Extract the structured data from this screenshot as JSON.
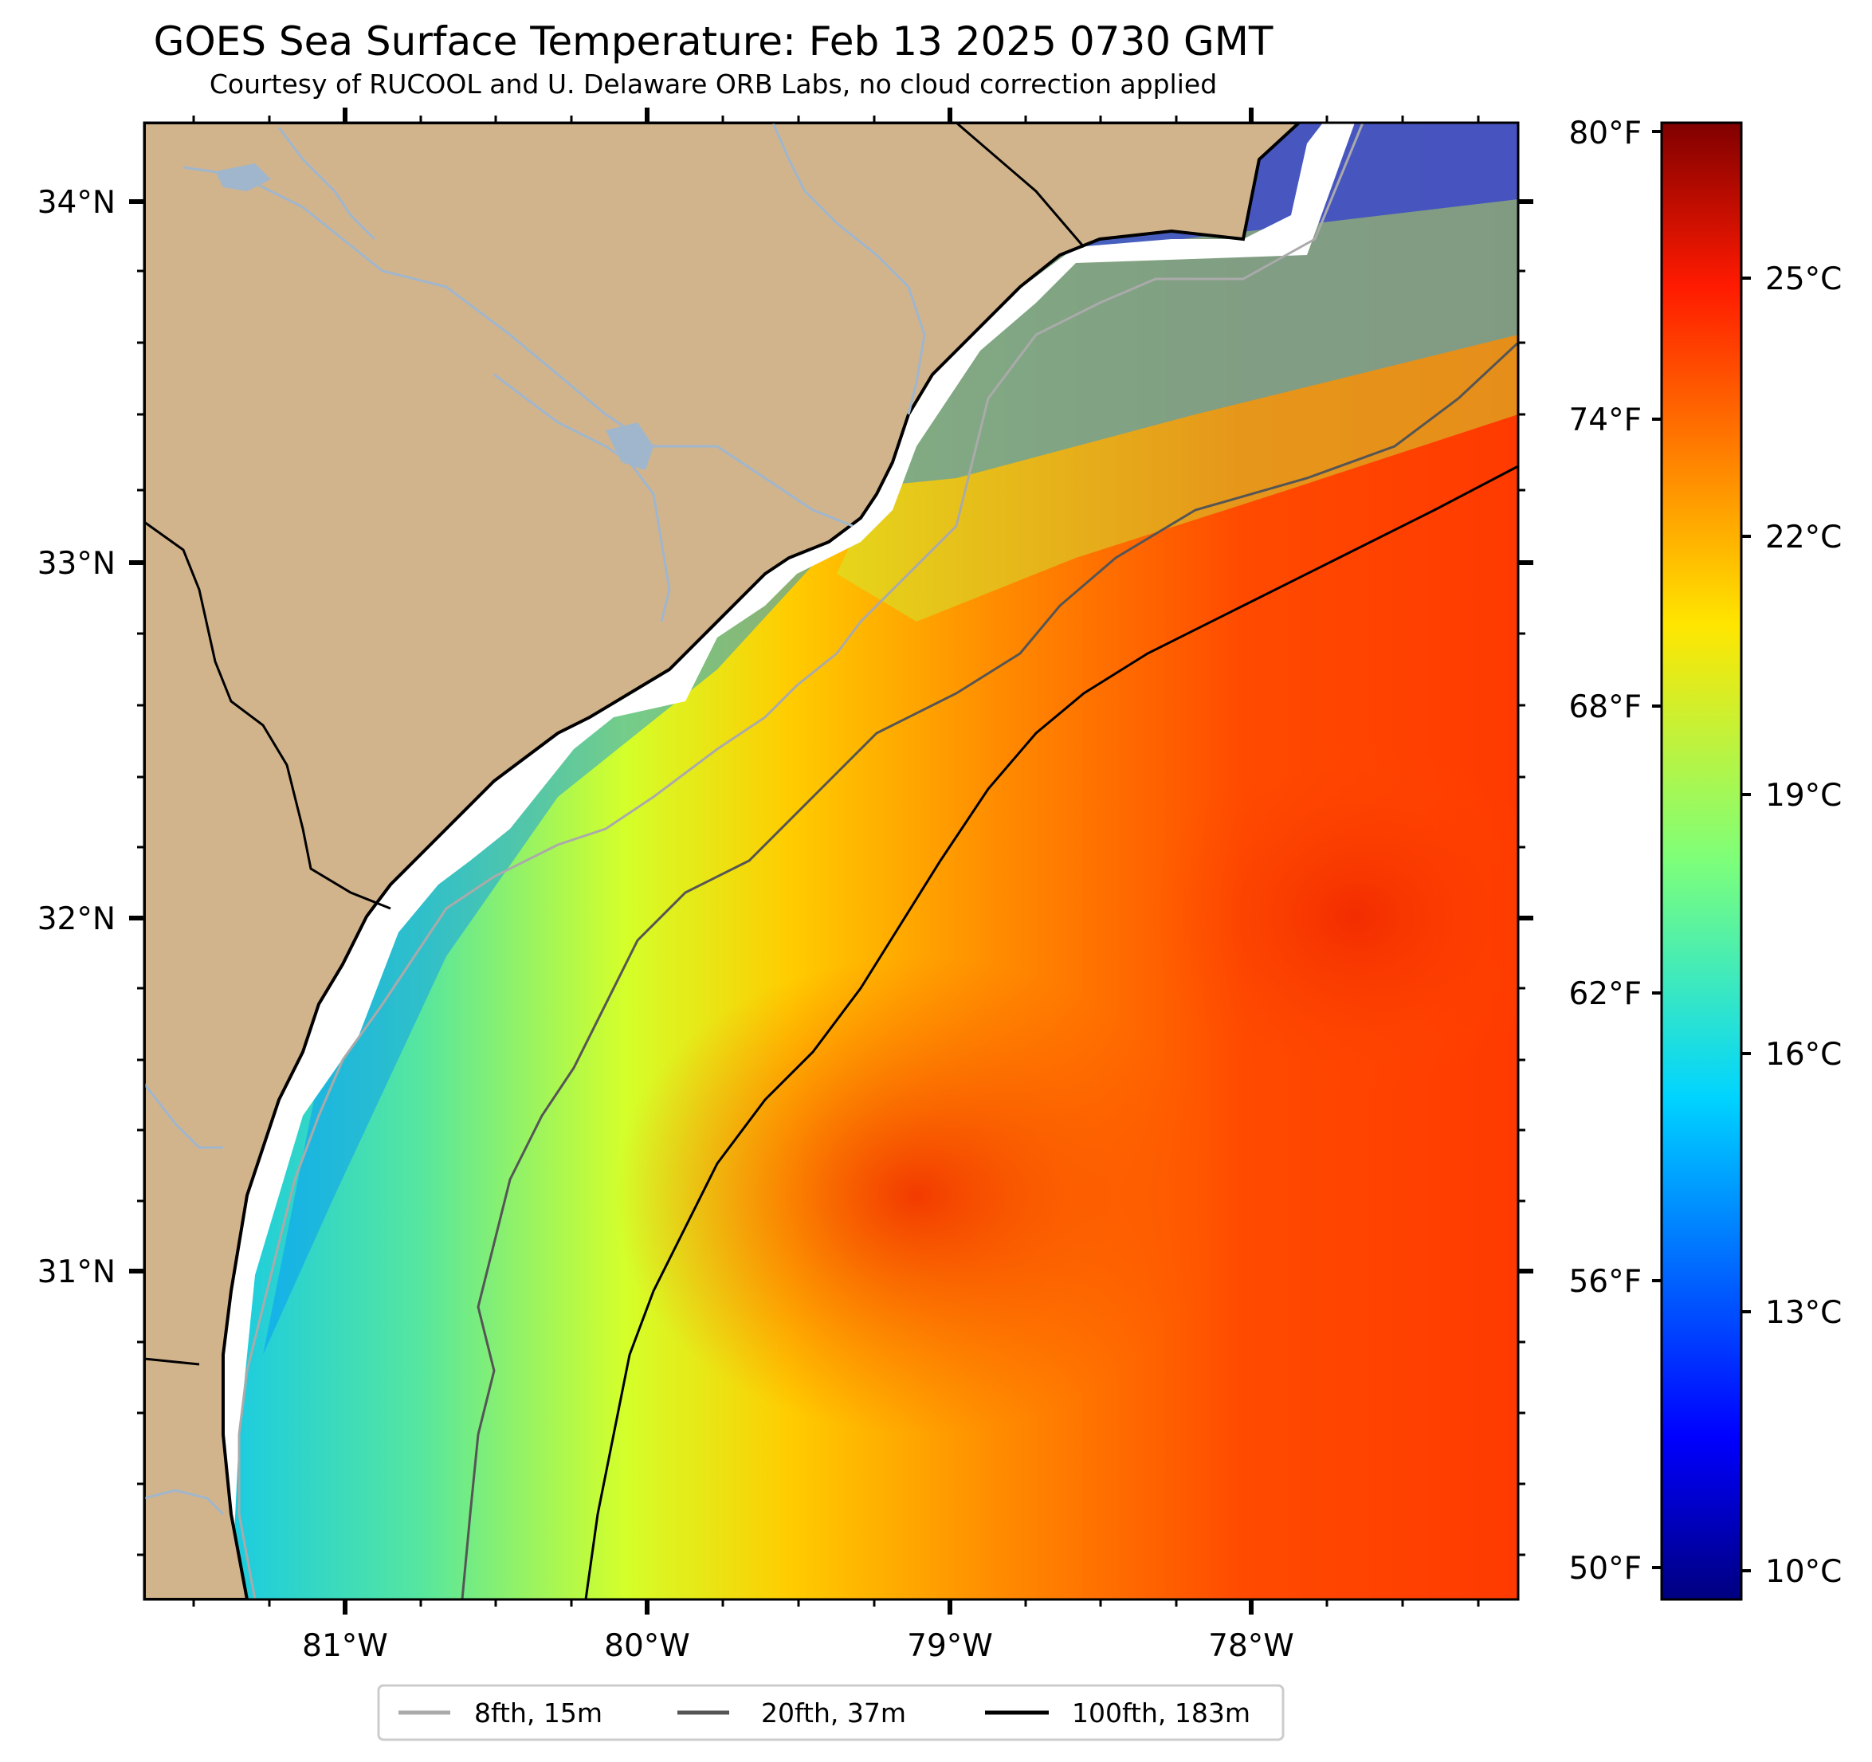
{
  "title": "GOES Sea Surface Temperature: Feb 13 2025 0730 GMT",
  "subtitle": "Courtesy of RUCOOL and U. Delaware ORB Labs, no cloud correction applied",
  "map": {
    "lat_ticks": [
      {
        "label": "34°N",
        "lat": 34
      },
      {
        "label": "33°N",
        "lat": 33
      },
      {
        "label": "32°N",
        "lat": 32
      },
      {
        "label": "31°N",
        "lat": 31
      }
    ],
    "lon_ticks": [
      {
        "label": "81°W",
        "lon": -81
      },
      {
        "label": "80°W",
        "lon": -80
      },
      {
        "label": "79°W",
        "lon": -79
      },
      {
        "label": "78°W",
        "lon": -78
      }
    ],
    "colors": {
      "land": "#d2b48c",
      "river": "#9fb6cd",
      "coast": "#000000",
      "no_data": "#ffffff"
    }
  },
  "colorbar": {
    "colormap": "jet",
    "range_c": [
      9.4,
      26.7
    ],
    "celsius_ticks": [
      {
        "label": "25°C",
        "value": 25
      },
      {
        "label": "22°C",
        "value": 22
      },
      {
        "label": "19°C",
        "value": 19
      },
      {
        "label": "16°C",
        "value": 16
      },
      {
        "label": "13°C",
        "value": 13
      },
      {
        "label": "10°C",
        "value": 10
      }
    ],
    "fahrenheit_ticks": [
      {
        "label": "80°F",
        "value": 80
      },
      {
        "label": "74°F",
        "value": 74
      },
      {
        "label": "68°F",
        "value": 68
      },
      {
        "label": "62°F",
        "value": 62
      },
      {
        "label": "56°F",
        "value": 56
      },
      {
        "label": "50°F",
        "value": 50
      }
    ]
  },
  "legend": {
    "items": [
      {
        "label": "8fth, 15m",
        "color": "#aaaaaa"
      },
      {
        "label": "20fth, 37m",
        "color": "#555555"
      },
      {
        "label": "100fth, 183m",
        "color": "#000000"
      }
    ]
  }
}
